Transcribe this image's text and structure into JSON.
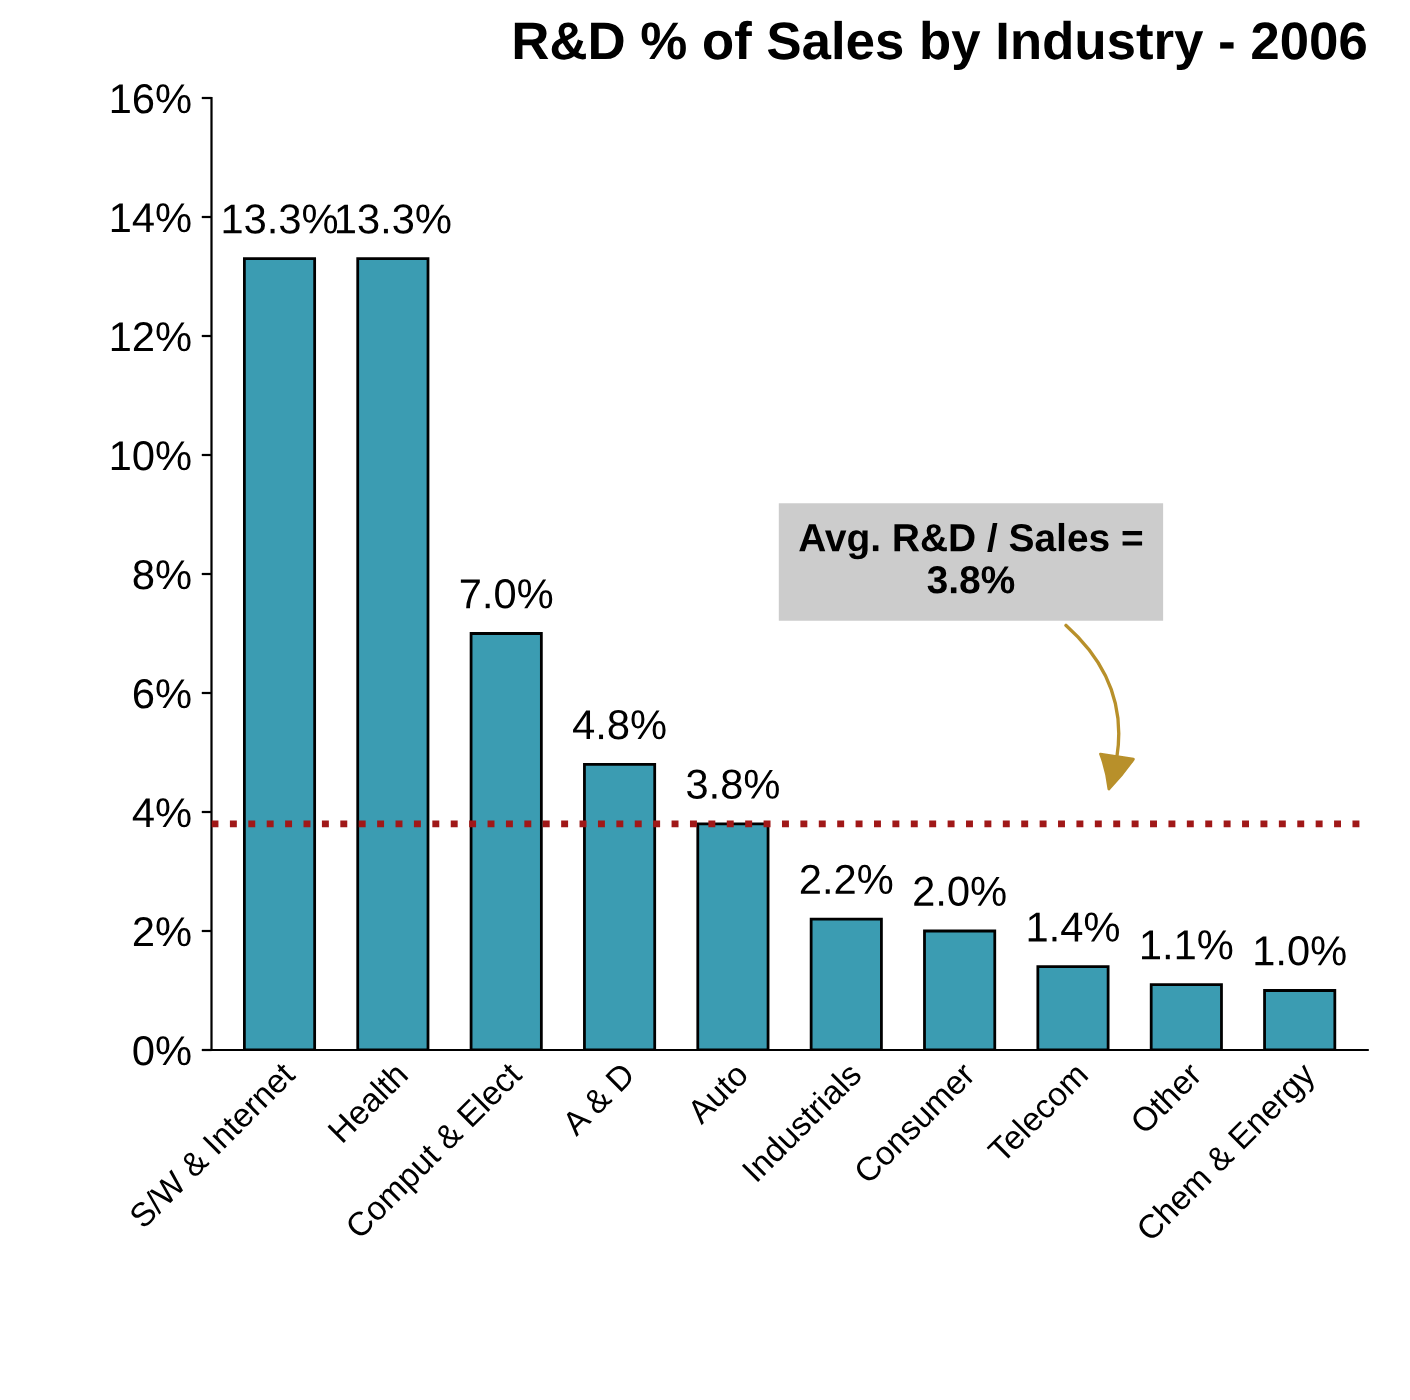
{
  "chart_data": {
    "type": "bar",
    "title": "R&D % of Sales by Industry - 2006",
    "categories": [
      "S/W & Internet",
      "Health",
      "Comput & Elect",
      "A & D",
      "Auto",
      "Industrials",
      "Consumer",
      "Telecom",
      "Other",
      "Chem & Energy"
    ],
    "values": [
      13.3,
      13.3,
      7.0,
      4.8,
      3.8,
      2.2,
      2.0,
      1.4,
      1.1,
      1.0
    ],
    "value_labels": [
      "13.3%",
      "13.3%",
      "7.0%",
      "4.8%",
      "3.8%",
      "2.2%",
      "2.0%",
      "1.4%",
      "1.1%",
      "1.0%"
    ],
    "color": "#3b9cb2",
    "ylim": [
      0,
      16
    ],
    "yticks": [
      {
        "value": 0,
        "label": "0%"
      },
      {
        "value": 2,
        "label": "2%"
      },
      {
        "value": 4,
        "label": "4%"
      },
      {
        "value": 6,
        "label": "6%"
      },
      {
        "value": 8,
        "label": "8%"
      },
      {
        "value": 10,
        "label": "10%"
      },
      {
        "value": 12,
        "label": "12%"
      },
      {
        "value": 14,
        "label": "14%"
      },
      {
        "value": 16,
        "label": "16%"
      }
    ],
    "ref_lines": [
      {
        "axis": "y",
        "value": 3.8,
        "color": "#a01818",
        "line_style": "dotted"
      }
    ],
    "annotations": [
      "Avg. R&D / Sales =\n3.8%"
    ],
    "grid": false,
    "legend": false
  }
}
